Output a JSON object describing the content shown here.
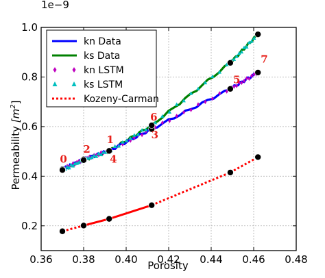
{
  "chart_data": {
    "type": "line",
    "xlabel": "Porosity",
    "ylabel_text": "Permeability ",
    "ylabel_unit_base": "[m",
    "ylabel_unit_sup": "2",
    "ylabel_unit_close": "]",
    "y_exponent_label": "1e−9",
    "xlim": [
      0.36,
      0.48
    ],
    "ylim": [
      0.1,
      1.0
    ],
    "xticks": [
      0.36,
      0.38,
      0.4,
      0.42,
      0.44,
      0.46,
      0.48
    ],
    "xtick_labels": [
      "0.36",
      "0.38",
      "0.40",
      "0.42",
      "0.44",
      "0.46",
      "0.48"
    ],
    "yticks": [
      0.2,
      0.4,
      0.6,
      0.8,
      1.0
    ],
    "ytick_labels": [
      "0.2",
      "0.4",
      "0.6",
      "0.8",
      "1.0"
    ],
    "grid": true,
    "legend_position": "top-left",
    "legend": [
      {
        "label": "kn Data",
        "color": "#0000ff",
        "style": "line"
      },
      {
        "label": "ks Data",
        "color": "#008000",
        "style": "line"
      },
      {
        "label": "kn LSTM",
        "color": "#bf00bf",
        "style": "diamond"
      },
      {
        "label": "ks LSTM",
        "color": "#00bfbf",
        "style": "triangle"
      },
      {
        "label": "Kozeny-Carman",
        "color": "#ff0000",
        "style": "dotted"
      }
    ],
    "series": [
      {
        "name": "kn Data",
        "color": "#0000ff",
        "x": [
          0.37,
          0.38,
          0.392,
          0.412,
          0.449,
          0.462
        ],
        "y": [
          0.428,
          0.468,
          0.503,
          0.59,
          0.752,
          0.818
        ]
      },
      {
        "name": "ks Data",
        "color": "#008000",
        "x": [
          0.37,
          0.38,
          0.392,
          0.412,
          0.449,
          0.462
        ],
        "y": [
          0.425,
          0.465,
          0.502,
          0.605,
          0.857,
          0.972
        ]
      },
      {
        "name": "kn LSTM",
        "color": "#bf00bf",
        "x": [
          0.37,
          0.38,
          0.392,
          0.412,
          0.449,
          0.462
        ],
        "y": [
          0.428,
          0.468,
          0.503,
          0.59,
          0.752,
          0.818
        ]
      },
      {
        "name": "ks LSTM",
        "color": "#00bfbf",
        "x": [
          0.37,
          0.38,
          0.392,
          0.412,
          0.449,
          0.462
        ],
        "y": [
          0.425,
          0.465,
          0.502,
          0.605,
          0.857,
          0.972
        ]
      },
      {
        "name": "Kozeny-Carman",
        "color": "#ff0000",
        "x": [
          0.37,
          0.38,
          0.392,
          0.412,
          0.449,
          0.462
        ],
        "y": [
          0.178,
          0.201,
          0.228,
          0.283,
          0.415,
          0.477
        ]
      }
    ],
    "points": [
      {
        "x": 0.37,
        "y": 0.428
      },
      {
        "x": 0.38,
        "y": 0.468
      },
      {
        "x": 0.392,
        "y": 0.503
      },
      {
        "x": 0.412,
        "y": 0.59
      },
      {
        "x": 0.449,
        "y": 0.752
      },
      {
        "x": 0.462,
        "y": 0.818
      },
      {
        "x": 0.37,
        "y": 0.425
      },
      {
        "x": 0.38,
        "y": 0.465
      },
      {
        "x": 0.392,
        "y": 0.502
      },
      {
        "x": 0.412,
        "y": 0.605
      },
      {
        "x": 0.449,
        "y": 0.857
      },
      {
        "x": 0.462,
        "y": 0.972
      },
      {
        "x": 0.37,
        "y": 0.178
      },
      {
        "x": 0.38,
        "y": 0.201
      },
      {
        "x": 0.392,
        "y": 0.228
      },
      {
        "x": 0.412,
        "y": 0.283
      },
      {
        "x": 0.449,
        "y": 0.415
      },
      {
        "x": 0.462,
        "y": 0.477
      }
    ],
    "annotations": [
      {
        "text": "0",
        "x": 0.3705,
        "y": 0.455
      },
      {
        "text": "1",
        "x": 0.3925,
        "y": 0.533
      },
      {
        "text": "2",
        "x": 0.3815,
        "y": 0.495
      },
      {
        "text": "3",
        "x": 0.4135,
        "y": 0.553
      },
      {
        "text": "4",
        "x": 0.394,
        "y": 0.455
      },
      {
        "text": "5",
        "x": 0.452,
        "y": 0.775
      },
      {
        "text": "6",
        "x": 0.413,
        "y": 0.625
      },
      {
        "text": "7",
        "x": 0.465,
        "y": 0.858
      }
    ]
  }
}
